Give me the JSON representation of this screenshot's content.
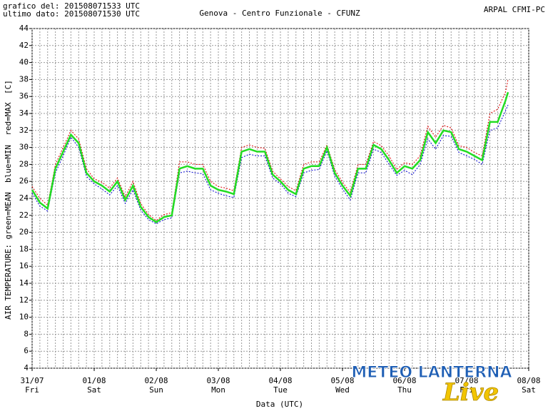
{
  "header": {
    "created": "grafico del: 201508071533 UTC",
    "last": "ultimo dato: 201508071530 UTC",
    "station": "Genova - Centro Funzionale - CFUNZ",
    "source": "ARPAL CFMI-PC"
  },
  "watermark": {
    "text": "METEO LANTERNA",
    "sub": "Live"
  },
  "chart_data": {
    "type": "line",
    "y_label": "AIR TEMPERATURE: green=MEAN  blue=MIN  red=MAX",
    "y_unit": "[C]",
    "x_label": "Data (UTC)",
    "x": [
      0,
      3,
      6,
      9,
      12,
      15,
      18,
      21,
      24,
      27,
      30,
      33,
      36,
      39,
      42,
      45,
      48,
      51,
      54,
      57,
      60,
      63,
      66,
      69,
      72,
      75,
      78,
      81,
      84,
      87,
      90,
      93,
      96,
      99,
      102,
      105,
      108,
      111,
      114,
      117,
      120,
      123,
      126,
      129,
      132,
      135,
      138,
      141,
      144,
      147,
      150,
      153,
      156,
      159,
      162,
      165,
      168,
      171,
      174,
      177,
      180,
      183,
      184
    ],
    "xlim": [
      0,
      192
    ],
    "xticks": [
      {
        "value": 0,
        "label": "31/07"
      },
      {
        "value": 24,
        "label": "01/08"
      },
      {
        "value": 48,
        "label": "02/08"
      },
      {
        "value": 72,
        "label": "03/08"
      },
      {
        "value": 96,
        "label": "04/08"
      },
      {
        "value": 120,
        "label": "05/08"
      },
      {
        "value": 144,
        "label": "06/08"
      },
      {
        "value": 168,
        "label": "07/08"
      },
      {
        "value": 192,
        "label": "08/08"
      }
    ],
    "xtick_days": [
      "Fri",
      "Sat",
      "Sun",
      "Mon",
      "Tue",
      "Wed",
      "Thu",
      "Fri",
      "Sat"
    ],
    "ylim": [
      4,
      44
    ],
    "yticks": [
      4,
      6,
      8,
      10,
      12,
      14,
      16,
      18,
      20,
      22,
      24,
      26,
      28,
      30,
      32,
      34,
      36,
      38,
      40,
      42,
      44
    ],
    "grid": true,
    "series": [
      {
        "name": "MEAN",
        "color": "#22dd22",
        "values": [
          25,
          23.5,
          22.8,
          27.5,
          29.5,
          31.5,
          30.5,
          27,
          26,
          25.5,
          24.8,
          26,
          23.8,
          25.5,
          23,
          21.8,
          21.2,
          21.8,
          22,
          27.5,
          27.8,
          27.5,
          27.5,
          25.5,
          25,
          24.8,
          24.5,
          29.5,
          29.8,
          29.5,
          29.5,
          26.8,
          26,
          25,
          24.5,
          27.5,
          27.8,
          27.8,
          30,
          27,
          25.5,
          24.3,
          27.5,
          27.5,
          30.3,
          29.8,
          28.5,
          27,
          27.8,
          27.5,
          28.5,
          31.8,
          30.5,
          32,
          31.8,
          29.8,
          29.5,
          29,
          28.5,
          33,
          33,
          35.5,
          36.5
        ]
      },
      {
        "name": "MIN",
        "color": "#0000cc",
        "values": [
          24.6,
          23.1,
          22.5,
          27,
          29,
          31.2,
          30,
          26.6,
          25.7,
          25.1,
          24.4,
          25.5,
          23.4,
          25,
          22.6,
          21.5,
          21,
          21.5,
          21.7,
          27,
          27.2,
          27,
          26.9,
          25,
          24.6,
          24.3,
          24.1,
          28.8,
          29.2,
          29,
          29,
          26.4,
          25.7,
          24.6,
          24.2,
          27,
          27.3,
          27.4,
          29.6,
          26.6,
          25.1,
          23.8,
          27,
          27,
          29.8,
          29.4,
          28,
          26.7,
          27.3,
          26.8,
          28,
          31,
          29.8,
          31.4,
          31.3,
          29.4,
          29,
          28.6,
          28,
          32,
          32.3,
          34.3,
          35
        ]
      },
      {
        "name": "MAX",
        "color": "#dd0000",
        "values": [
          25.4,
          24,
          23.2,
          28,
          30,
          32,
          31,
          27.5,
          26.3,
          25.9,
          25.2,
          26.4,
          24.2,
          26,
          23.4,
          22.1,
          21.4,
          22.1,
          22.3,
          28.3,
          28.3,
          28,
          28,
          26,
          25.4,
          25.2,
          24.9,
          30,
          30.3,
          30,
          29.9,
          27.2,
          26.3,
          25.4,
          24.9,
          28,
          28.3,
          28.3,
          30.3,
          27.4,
          25.9,
          24.7,
          28,
          28,
          30.7,
          30.2,
          29,
          27.4,
          28.2,
          28,
          29,
          32.5,
          31.2,
          32.6,
          32.3,
          30.2,
          30,
          29.4,
          29,
          34,
          34.5,
          36.5,
          38
        ]
      }
    ]
  }
}
